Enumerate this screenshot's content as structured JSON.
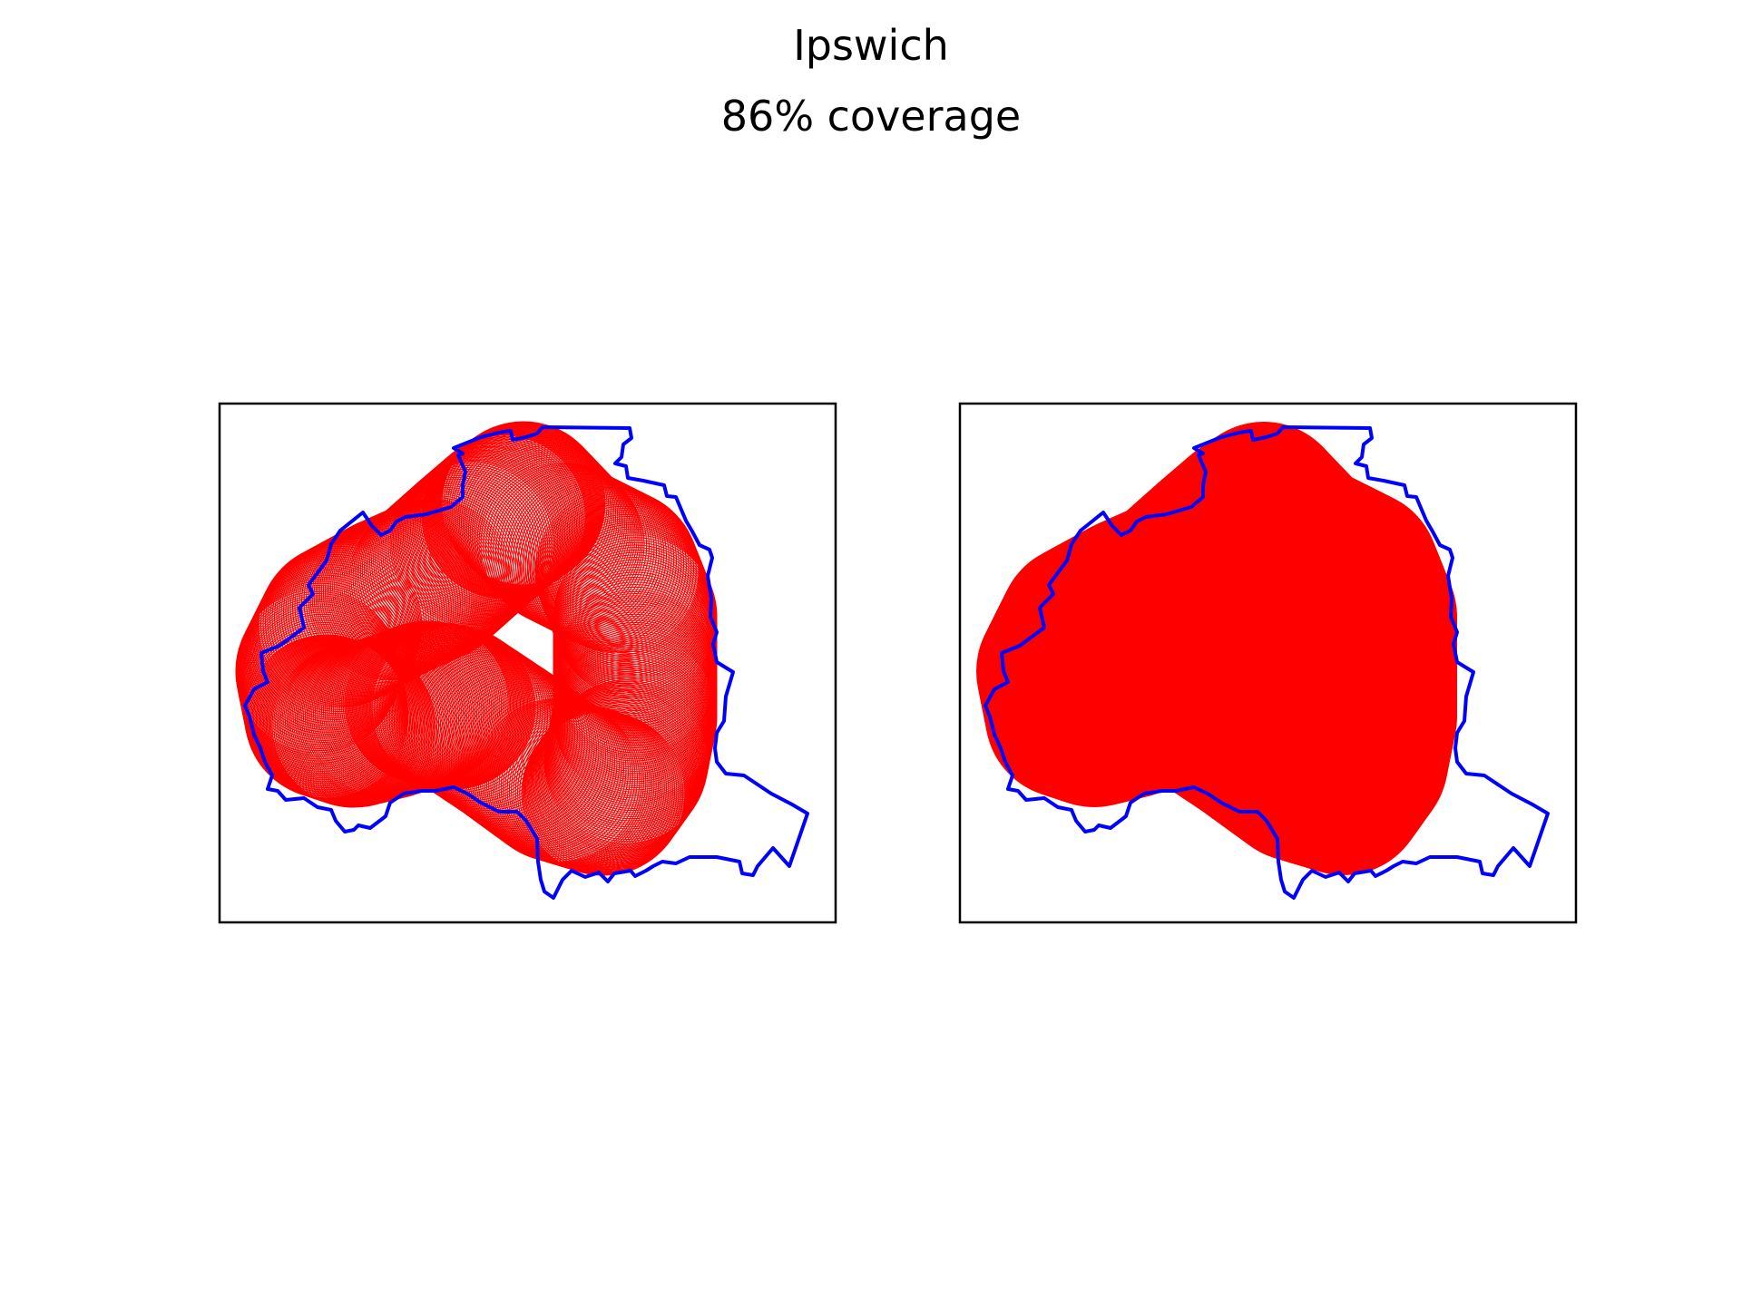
{
  "figure": {
    "title": "Ipswich",
    "subtitle": "86% coverage"
  },
  "colors": {
    "boundary": "#0000ff",
    "coverage": "#ff0000",
    "frame": "#000000"
  },
  "panels": [
    {
      "name": "coverage-rings",
      "style": "rings"
    },
    {
      "name": "coverage-filled",
      "style": "filled"
    }
  ],
  "chart_data": {
    "type": "map",
    "title": "Ipswich",
    "subtitle": "86% coverage",
    "coverage_percent": 86,
    "panels": 2,
    "axes_ticks": false
  }
}
